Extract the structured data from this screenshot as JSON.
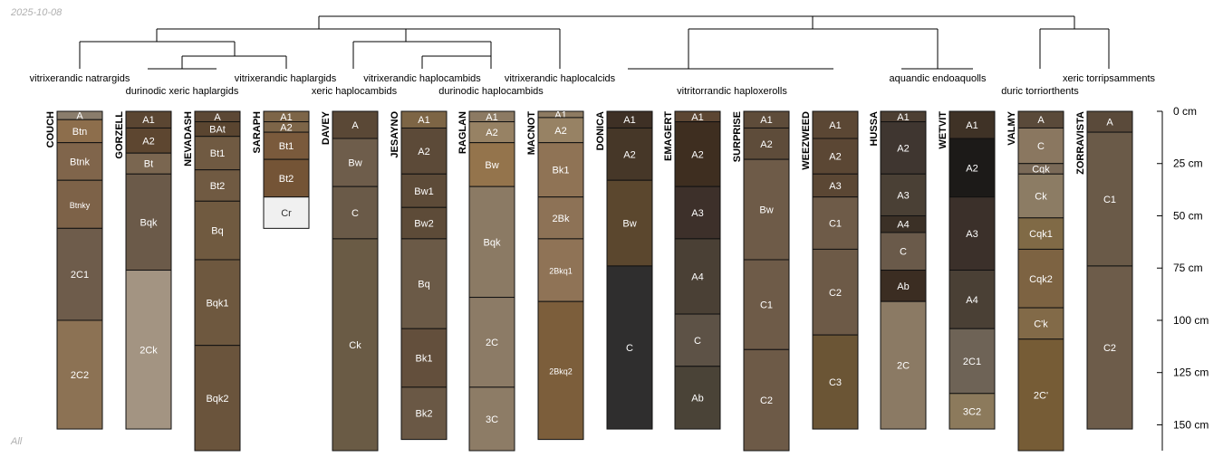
{
  "date_stamp": "2025-10-08",
  "corner_label": "All",
  "depth_axis": {
    "unit": "cm",
    "ticks": [
      0,
      25,
      50,
      75,
      100,
      125,
      150
    ],
    "labels": [
      "0 cm",
      "25 cm",
      "50 cm",
      "75 cm",
      "100 cm",
      "125 cm",
      "150 cm"
    ]
  },
  "taxa_labels": [
    "vitrixerandic natrargids",
    "durinodic xeric haplargids",
    "vitrixerandic haplargids",
    "xeric haplocambids",
    "vitrixerandic haplocambids",
    "durinodic haplocambids",
    "vitrixerandic haplocalcids",
    "vitritorrandic haploxerolls",
    "aquandic endoaquolls",
    "duric torriorthents",
    "xeric torripsamments"
  ],
  "profiles": [
    {
      "name": "COUCH",
      "horizons": [
        {
          "name": "A",
          "top": 0,
          "bottom": 4,
          "color": "#8a7d6c"
        },
        {
          "name": "Btn",
          "top": 4,
          "bottom": 15,
          "color": "#8d6e4c"
        },
        {
          "name": "Btnk",
          "top": 15,
          "bottom": 33,
          "color": "#80654b"
        },
        {
          "name": "Btnky",
          "top": 33,
          "bottom": 56,
          "color": "#7d6248"
        },
        {
          "name": "2C1",
          "top": 56,
          "bottom": 100,
          "color": "#6e5c4b"
        },
        {
          "name": "2C2",
          "top": 100,
          "bottom": 152,
          "color": "#8c7254"
        }
      ]
    },
    {
      "name": "GORZELL",
      "horizons": [
        {
          "name": "A1",
          "top": 0,
          "bottom": 8,
          "color": "#5b4632"
        },
        {
          "name": "A2",
          "top": 8,
          "bottom": 20,
          "color": "#5d4630"
        },
        {
          "name": "Bt",
          "top": 20,
          "bottom": 30,
          "color": "#7a6650"
        },
        {
          "name": "Bqk",
          "top": 30,
          "bottom": 76,
          "color": "#6b5a49"
        },
        {
          "name": "2Ck",
          "top": 76,
          "bottom": 152,
          "color": "#a39482"
        }
      ]
    },
    {
      "name": "NEVADASH",
      "horizons": [
        {
          "name": "A",
          "top": 0,
          "bottom": 5,
          "color": "#5c4835"
        },
        {
          "name": "BAt",
          "top": 5,
          "bottom": 12,
          "color": "#5a4530"
        },
        {
          "name": "Bt1",
          "top": 12,
          "bottom": 28,
          "color": "#705a42"
        },
        {
          "name": "Bt2",
          "top": 28,
          "bottom": 43,
          "color": "#705a42"
        },
        {
          "name": "Bq",
          "top": 43,
          "bottom": 71,
          "color": "#705a40"
        },
        {
          "name": "Bqk1",
          "top": 71,
          "bottom": 112,
          "color": "#6e583f"
        },
        {
          "name": "Bqk2",
          "top": 112,
          "bottom": 170,
          "color": "#6a543c"
        }
      ]
    },
    {
      "name": "SARAPH",
      "horizons": [
        {
          "name": "A1",
          "top": 0,
          "bottom": 5,
          "color": "#7d6548"
        },
        {
          "name": "A2",
          "top": 5,
          "bottom": 10,
          "color": "#7d6548"
        },
        {
          "name": "Bt1",
          "top": 10,
          "bottom": 23,
          "color": "#7a5a3c"
        },
        {
          "name": "Bt2",
          "top": 23,
          "bottom": 41,
          "color": "#745436"
        },
        {
          "name": "Cr",
          "top": 41,
          "bottom": 56,
          "color": "#f0f0f0"
        }
      ]
    },
    {
      "name": "DAVEY",
      "horizons": [
        {
          "name": "A",
          "top": 0,
          "bottom": 13,
          "color": "#5a4836"
        },
        {
          "name": "Bw",
          "top": 13,
          "bottom": 36,
          "color": "#6e5d4b"
        },
        {
          "name": "C",
          "top": 36,
          "bottom": 61,
          "color": "#6a5a48"
        },
        {
          "name": "Ck",
          "top": 61,
          "bottom": 170,
          "color": "#6a5b45"
        }
      ]
    },
    {
      "name": "JESAYNO",
      "horizons": [
        {
          "name": "A1",
          "top": 0,
          "bottom": 8,
          "color": "#7d6545"
        },
        {
          "name": "A2",
          "top": 8,
          "bottom": 30,
          "color": "#5c4a38"
        },
        {
          "name": "Bw1",
          "top": 30,
          "bottom": 46,
          "color": "#5d4b38"
        },
        {
          "name": "Bw2",
          "top": 46,
          "bottom": 61,
          "color": "#5d4b38"
        },
        {
          "name": "Bq",
          "top": 61,
          "bottom": 104,
          "color": "#6b5a47"
        },
        {
          "name": "Bk1",
          "top": 104,
          "bottom": 132,
          "color": "#634f3c"
        },
        {
          "name": "Bk2",
          "top": 132,
          "bottom": 157,
          "color": "#6a5845"
        }
      ]
    },
    {
      "name": "RAGLAN",
      "horizons": [
        {
          "name": "A1",
          "top": 0,
          "bottom": 5,
          "color": "#8c7a63"
        },
        {
          "name": "A2",
          "top": 5,
          "bottom": 15,
          "color": "#978264"
        },
        {
          "name": "Bw",
          "top": 15,
          "bottom": 36,
          "color": "#94744c"
        },
        {
          "name": "Bqk",
          "top": 36,
          "bottom": 89,
          "color": "#8b7a64"
        },
        {
          "name": "2C",
          "top": 89,
          "bottom": 132,
          "color": "#8c7b66"
        },
        {
          "name": "3C",
          "top": 132,
          "bottom": 170,
          "color": "#8d7c66"
        }
      ]
    },
    {
      "name": "MACNOT",
      "horizons": [
        {
          "name": "A1",
          "top": 0,
          "bottom": 3,
          "color": "#8e7b62"
        },
        {
          "name": "A2",
          "top": 3,
          "bottom": 15,
          "color": "#978264"
        },
        {
          "name": "Bk1",
          "top": 15,
          "bottom": 41,
          "color": "#8f7355"
        },
        {
          "name": "2Bk",
          "top": 41,
          "bottom": 61,
          "color": "#8d7256"
        },
        {
          "name": "2Bkq1",
          "top": 61,
          "bottom": 91,
          "color": "#8f7356"
        },
        {
          "name": "2Bkq2",
          "top": 91,
          "bottom": 157,
          "color": "#7c5e3b"
        }
      ]
    },
    {
      "name": "DONICA",
      "horizons": [
        {
          "name": "A1",
          "top": 0,
          "bottom": 8,
          "color": "#3e3025"
        },
        {
          "name": "A2",
          "top": 8,
          "bottom": 33,
          "color": "#463728"
        },
        {
          "name": "Bw",
          "top": 33,
          "bottom": 74,
          "color": "#5b472e"
        },
        {
          "name": "C",
          "top": 74,
          "bottom": 152,
          "color": "#2f2e2e"
        }
      ]
    },
    {
      "name": "EMAGERT",
      "horizons": [
        {
          "name": "A1",
          "top": 0,
          "bottom": 5,
          "color": "#5c4633"
        },
        {
          "name": "A2",
          "top": 5,
          "bottom": 36,
          "color": "#3e2e20"
        },
        {
          "name": "A3",
          "top": 36,
          "bottom": 61,
          "color": "#3d302a"
        },
        {
          "name": "A4",
          "top": 61,
          "bottom": 97,
          "color": "#4a4035"
        },
        {
          "name": "C",
          "top": 97,
          "bottom": 122,
          "color": "#5d5246"
        },
        {
          "name": "Ab",
          "top": 122,
          "bottom": 152,
          "color": "#4a4337"
        }
      ]
    },
    {
      "name": "SURPRISE",
      "horizons": [
        {
          "name": "A1",
          "top": 0,
          "bottom": 8,
          "color": "#5e4c3a"
        },
        {
          "name": "A2",
          "top": 8,
          "bottom": 23,
          "color": "#5e4c3a"
        },
        {
          "name": "Bw",
          "top": 23,
          "bottom": 71,
          "color": "#6e5b48"
        },
        {
          "name": "C1",
          "top": 71,
          "bottom": 114,
          "color": "#6e5b48"
        },
        {
          "name": "C2",
          "top": 114,
          "bottom": 170,
          "color": "#6d5a47"
        }
      ]
    },
    {
      "name": "WEEZWEED",
      "horizons": [
        {
          "name": "A1",
          "top": 0,
          "bottom": 13,
          "color": "#5b4734"
        },
        {
          "name": "A2",
          "top": 13,
          "bottom": 30,
          "color": "#5b4734"
        },
        {
          "name": "A3",
          "top": 30,
          "bottom": 41,
          "color": "#5b4734"
        },
        {
          "name": "C1",
          "top": 41,
          "bottom": 66,
          "color": "#6e5b48"
        },
        {
          "name": "C2",
          "top": 66,
          "bottom": 107,
          "color": "#6d5a47"
        },
        {
          "name": "C3",
          "top": 107,
          "bottom": 152,
          "color": "#6b5535"
        }
      ]
    },
    {
      "name": "HUSSA",
      "horizons": [
        {
          "name": "A1",
          "top": 0,
          "bottom": 5,
          "color": "#4d3f33"
        },
        {
          "name": "A2",
          "top": 5,
          "bottom": 30,
          "color": "#3f3630"
        },
        {
          "name": "A3",
          "top": 30,
          "bottom": 50,
          "color": "#4a4035"
        },
        {
          "name": "A4",
          "top": 50,
          "bottom": 58,
          "color": "#3b3026"
        },
        {
          "name": "C",
          "top": 58,
          "bottom": 76,
          "color": "#6a5a4a"
        },
        {
          "name": "Ab",
          "top": 76,
          "bottom": 91,
          "color": "#3b2d22"
        },
        {
          "name": "2C",
          "top": 91,
          "bottom": 152,
          "color": "#8b7a64"
        }
      ]
    },
    {
      "name": "WETVIT",
      "horizons": [
        {
          "name": "A1",
          "top": 0,
          "bottom": 13,
          "color": "#3f3226"
        },
        {
          "name": "A2",
          "top": 13,
          "bottom": 41,
          "color": "#1c1a18"
        },
        {
          "name": "A3",
          "top": 41,
          "bottom": 76,
          "color": "#3b302a"
        },
        {
          "name": "A4",
          "top": 76,
          "bottom": 104,
          "color": "#4a4035"
        },
        {
          "name": "2C1",
          "top": 104,
          "bottom": 135,
          "color": "#6e6356"
        },
        {
          "name": "3C2",
          "top": 135,
          "bottom": 152,
          "color": "#8c7a5c"
        }
      ]
    },
    {
      "name": "VALMY",
      "horizons": [
        {
          "name": "A",
          "top": 0,
          "bottom": 8,
          "color": "#5a4a3a"
        },
        {
          "name": "C",
          "top": 8,
          "bottom": 25,
          "color": "#8a7760"
        },
        {
          "name": "Cqk",
          "top": 25,
          "bottom": 30,
          "color": "#7a6a58"
        },
        {
          "name": "Ck",
          "top": 30,
          "bottom": 51,
          "color": "#8c7c64"
        },
        {
          "name": "Cqk1",
          "top": 51,
          "bottom": 66,
          "color": "#806a46"
        },
        {
          "name": "Cqk2",
          "top": 66,
          "bottom": 94,
          "color": "#7d6342"
        },
        {
          "name": "C'k",
          "top": 94,
          "bottom": 109,
          "color": "#826a48"
        },
        {
          "name": "2C'",
          "top": 109,
          "bottom": 170,
          "color": "#765c36"
        }
      ]
    },
    {
      "name": "ZORRAVISTA",
      "horizons": [
        {
          "name": "A",
          "top": 0,
          "bottom": 10,
          "color": "#5a4a3a"
        },
        {
          "name": "C1",
          "top": 10,
          "bottom": 74,
          "color": "#6a5a48"
        },
        {
          "name": "C2",
          "top": 74,
          "bottom": 152,
          "color": "#6d5c4a"
        }
      ]
    }
  ]
}
